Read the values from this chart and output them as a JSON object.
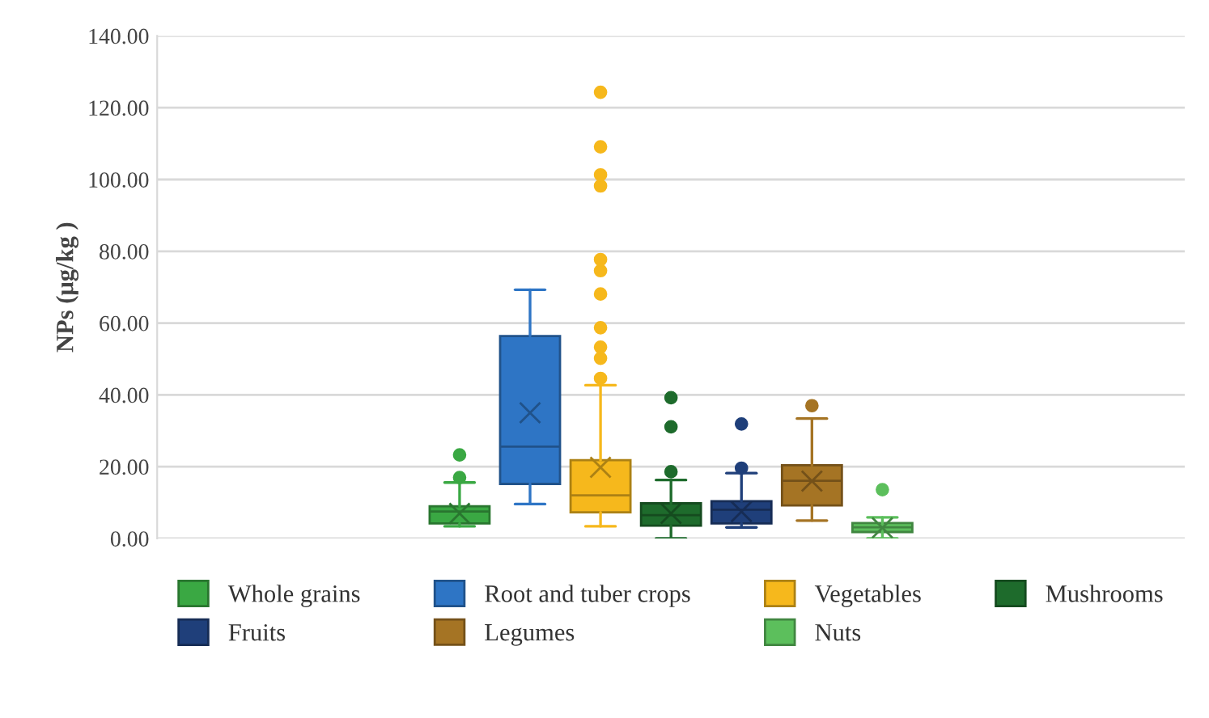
{
  "chart_data": {
    "type": "box",
    "ylabel": "NPs (μg/kg )",
    "categories": [
      null
    ],
    "series": [
      {
        "name": "Whole grains",
        "color": "#3aa843",
        "boxes": [
          {
            "low": 3.4,
            "q1": 4.2,
            "median": 7.5,
            "q3": 9.0,
            "high": 15.6,
            "mean": 7.0,
            "outliers": [
              17.0,
              23.3
            ]
          }
        ]
      },
      {
        "name": "Root and tuber crops",
        "color": "#2e75c5",
        "boxes": [
          {
            "low": 9.6,
            "q1": 15.2,
            "median": 25.6,
            "q3": 56.4,
            "high": 69.3,
            "mean": 35.0
          }
        ]
      },
      {
        "name": "Vegetables",
        "color": "#f6b81c",
        "boxes": [
          {
            "low": 3.4,
            "q1": 7.3,
            "median": 12.0,
            "q3": 21.8,
            "high": 42.7,
            "mean": 19.8,
            "outliers": [
              44.6,
              50.2,
              53.3,
              58.7,
              68.1,
              74.6,
              77.7,
              98.2,
              101.3,
              109.1,
              124.3
            ]
          }
        ]
      },
      {
        "name": "Mushrooms",
        "color": "#1e6b2c",
        "boxes": [
          {
            "low": 0.0,
            "q1": 3.6,
            "median": 6.5,
            "q3": 9.8,
            "high": 16.3,
            "mean": 7.0,
            "outliers": [
              18.6,
              31.1,
              39.2
            ]
          }
        ]
      },
      {
        "name": "Fruits",
        "color": "#1f3f7a",
        "boxes": [
          {
            "low": 3.1,
            "q1": 4.2,
            "median": 8.0,
            "q3": 10.4,
            "high": 18.2,
            "mean": 7.5,
            "outliers": [
              19.6,
              31.9
            ]
          }
        ]
      },
      {
        "name": "Legumes",
        "color": "#a57424",
        "boxes": [
          {
            "low": 5.0,
            "q1": 9.2,
            "median": 16.1,
            "q3": 20.4,
            "high": 33.4,
            "mean": 16.0,
            "outliers": [
              37.0
            ]
          }
        ]
      },
      {
        "name": "Nuts",
        "color": "#5cbf5c",
        "boxes": [
          {
            "low": 0.0,
            "q1": 1.8,
            "median": 3.1,
            "q3": 4.3,
            "high": 5.9,
            "mean": 3.0,
            "outliers": [
              13.6
            ]
          }
        ]
      }
    ],
    "ylim": [
      0,
      140
    ],
    "yticks": [
      {
        "value": 0,
        "label": "0.00"
      },
      {
        "value": 20,
        "label": "20.00"
      },
      {
        "value": 40,
        "label": "40.00"
      },
      {
        "value": 60,
        "label": "60.00"
      },
      {
        "value": 80,
        "label": "80.00"
      },
      {
        "value": 100,
        "label": "100.00"
      },
      {
        "value": 120,
        "label": "120.00"
      },
      {
        "value": 140,
        "label": "140.00"
      }
    ],
    "grid": "y",
    "legend": "bottom"
  }
}
